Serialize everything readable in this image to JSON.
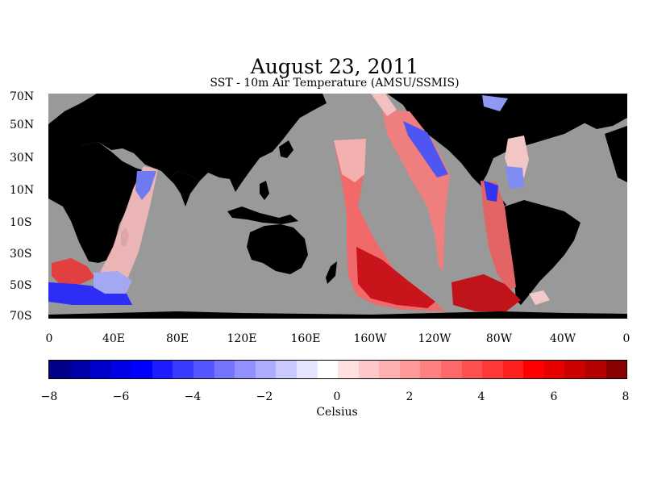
{
  "header": {
    "title": "August 23, 2011",
    "subtitle": "SST - 10m Air Temperature (AMSU/SSMIS)"
  },
  "map": {
    "projection": "equirectangular",
    "lat_range": [
      -70,
      70
    ],
    "lon_range": [
      0,
      360
    ],
    "land_color": "#000000",
    "no_data_color": "#999999",
    "lat_labels": [
      "70N",
      "50N",
      "30N",
      "10N",
      "10S",
      "30S",
      "50S",
      "70S"
    ],
    "lon_labels": [
      "0",
      "40E",
      "80E",
      "120E",
      "160E",
      "160W",
      "120W",
      "80W",
      "40W",
      "0"
    ]
  },
  "colorbar": {
    "min": -8,
    "max": 8,
    "tick_labels": [
      "−8",
      "−6",
      "−4",
      "−2",
      "0",
      "2",
      "4",
      "6",
      "8"
    ],
    "unit_label": "Celsius",
    "colors": [
      "#00008b",
      "#0000a8",
      "#0000cd",
      "#0000e6",
      "#0000ff",
      "#1c1cff",
      "#3a3aff",
      "#5656ff",
      "#7474ff",
      "#9090ff",
      "#adadff",
      "#c9c9ff",
      "#e5e5ff",
      "#ffffff",
      "#ffe0e0",
      "#ffc8c8",
      "#ffb0b0",
      "#ff9898",
      "#ff8080",
      "#ff6868",
      "#ff5050",
      "#ff3838",
      "#ff2020",
      "#ff0000",
      "#e60000",
      "#cc0000",
      "#b30000",
      "#8b0000"
    ]
  }
}
